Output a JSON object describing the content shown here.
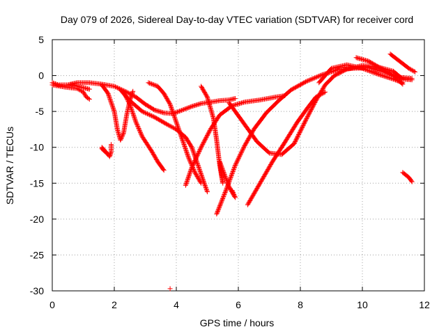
{
  "chart_data": {
    "type": "scatter",
    "title": "Day 079 of 2026, Sidereal Day-to-day VTEC variation (SDTVAR) for receiver cord",
    "xlabel": "GPS time / hours",
    "ylabel": "SDTVAR / TECUs",
    "xlim": [
      0,
      12
    ],
    "ylim": [
      -30,
      5
    ],
    "xticks": [
      0,
      2,
      4,
      6,
      8,
      10,
      12
    ],
    "yticks": [
      5,
      0,
      -5,
      -10,
      -15,
      -20,
      -25,
      -30
    ],
    "grid": true,
    "marker": "+",
    "color": "#ff0000",
    "series": [
      {
        "name": "arc-1",
        "points": [
          [
            0.0,
            -1.0
          ],
          [
            0.2,
            -1.3
          ],
          [
            0.5,
            -1.3
          ],
          [
            0.8,
            -1.0
          ],
          [
            1.2,
            -1.0
          ],
          [
            1.6,
            -1.2
          ],
          [
            2.0,
            -1.5
          ],
          [
            2.4,
            -2.3
          ],
          [
            2.7,
            -3.0
          ],
          [
            3.0,
            -4.0
          ],
          [
            3.3,
            -4.8
          ],
          [
            3.6,
            -5.2
          ],
          [
            3.9,
            -5.3
          ],
          [
            4.2,
            -4.8
          ],
          [
            4.5,
            -4.3
          ],
          [
            4.8,
            -3.9
          ],
          [
            5.1,
            -3.7
          ],
          [
            5.4,
            -3.5
          ],
          [
            5.7,
            -3.4
          ],
          [
            5.9,
            -3.2
          ]
        ]
      },
      {
        "name": "arc-2",
        "points": [
          [
            0.0,
            -1.3
          ],
          [
            0.4,
            -1.6
          ],
          [
            0.8,
            -1.8
          ],
          [
            1.0,
            -2.3
          ],
          [
            1.1,
            -3.0
          ],
          [
            1.2,
            -3.3
          ]
        ]
      },
      {
        "name": "arc-3",
        "points": [
          [
            0.6,
            -1.2
          ],
          [
            0.9,
            -1.6
          ],
          [
            1.2,
            -1.9
          ]
        ]
      },
      {
        "name": "arc-4",
        "points": [
          [
            1.6,
            -1.3
          ],
          [
            1.8,
            -2.5
          ],
          [
            2.0,
            -5.0
          ],
          [
            2.1,
            -7.5
          ],
          [
            2.2,
            -9.0
          ],
          [
            2.3,
            -8.0
          ],
          [
            2.4,
            -5.5
          ],
          [
            2.5,
            -3.5
          ],
          [
            2.6,
            -2.2
          ]
        ]
      },
      {
        "name": "arc-5",
        "points": [
          [
            2.3,
            -2.3
          ],
          [
            2.5,
            -4.0
          ],
          [
            2.7,
            -6.5
          ],
          [
            2.9,
            -8.5
          ],
          [
            3.2,
            -10.5
          ],
          [
            3.4,
            -12.0
          ],
          [
            3.6,
            -13.2
          ]
        ]
      },
      {
        "name": "arc-6",
        "points": [
          [
            2.2,
            -2.0
          ],
          [
            2.5,
            -3.5
          ],
          [
            2.9,
            -5.0
          ],
          [
            3.3,
            -5.8
          ],
          [
            3.7,
            -6.8
          ],
          [
            4.0,
            -7.5
          ],
          [
            4.3,
            -8.6
          ],
          [
            4.5,
            -10.0
          ],
          [
            4.7,
            -12.5
          ],
          [
            4.9,
            -15.0
          ],
          [
            5.0,
            -16.2
          ]
        ]
      },
      {
        "name": "arc-7",
        "points": [
          [
            3.1,
            -1.0
          ],
          [
            3.4,
            -1.5
          ],
          [
            3.6,
            -2.5
          ],
          [
            3.8,
            -4.0
          ],
          [
            4.0,
            -6.5
          ],
          [
            4.2,
            -9.0
          ],
          [
            4.4,
            -11.5
          ],
          [
            4.6,
            -13.5
          ],
          [
            4.8,
            -15.0
          ]
        ]
      },
      {
        "name": "arc-8",
        "points": [
          [
            4.3,
            -15.3
          ],
          [
            4.5,
            -12.8
          ],
          [
            4.8,
            -10.0
          ],
          [
            5.1,
            -7.5
          ],
          [
            5.4,
            -5.5
          ],
          [
            5.8,
            -4.2
          ],
          [
            6.2,
            -3.7
          ],
          [
            6.7,
            -3.4
          ],
          [
            7.2,
            -3.0
          ],
          [
            7.5,
            -2.8
          ]
        ]
      },
      {
        "name": "arc-9",
        "points": [
          [
            4.8,
            -1.5
          ],
          [
            5.0,
            -3.0
          ],
          [
            5.2,
            -6.0
          ],
          [
            5.3,
            -9.0
          ],
          [
            5.4,
            -12.5
          ],
          [
            5.5,
            -15.0
          ],
          [
            5.4,
            -12.0
          ],
          [
            5.7,
            -15.5
          ],
          [
            5.9,
            -17.0
          ],
          [
            5.8,
            -16.0
          ]
        ]
      },
      {
        "name": "arc-10",
        "points": [
          [
            5.3,
            -19.3
          ],
          [
            5.6,
            -16.0
          ],
          [
            5.9,
            -12.5
          ],
          [
            6.2,
            -9.8
          ],
          [
            6.5,
            -7.5
          ],
          [
            6.9,
            -5.2
          ],
          [
            7.3,
            -3.5
          ],
          [
            7.7,
            -2.0
          ],
          [
            8.2,
            -0.8
          ],
          [
            8.7,
            0.1
          ],
          [
            9.2,
            0.8
          ],
          [
            9.7,
            1.0
          ],
          [
            10.2,
            1.1
          ],
          [
            10.7,
            0.5
          ],
          [
            11.1,
            -0.2
          ],
          [
            11.6,
            -0.4
          ]
        ]
      },
      {
        "name": "arc-11",
        "points": [
          [
            5.7,
            -3.8
          ],
          [
            6.2,
            -6.8
          ],
          [
            6.6,
            -9.2
          ],
          [
            7.0,
            -10.8
          ],
          [
            7.4,
            -11.0
          ],
          [
            7.8,
            -9.5
          ],
          [
            8.2,
            -6.0
          ],
          [
            8.5,
            -3.5
          ],
          [
            8.8,
            -1.3
          ],
          [
            9.1,
            0.0
          ],
          [
            9.5,
            0.9
          ],
          [
            10.0,
            1.4
          ],
          [
            10.5,
            1.2
          ],
          [
            11.0,
            0.6
          ],
          [
            11.3,
            -0.5
          ],
          [
            11.6,
            -0.6
          ]
        ]
      },
      {
        "name": "arc-12",
        "points": [
          [
            6.3,
            -18.0
          ],
          [
            6.7,
            -15.0
          ],
          [
            7.1,
            -12.0
          ],
          [
            7.5,
            -9.3
          ],
          [
            7.9,
            -6.5
          ],
          [
            8.2,
            -4.7
          ],
          [
            8.5,
            -3.0
          ],
          [
            8.8,
            -2.3
          ]
        ]
      },
      {
        "name": "arc-13",
        "points": [
          [
            8.6,
            -1.0
          ],
          [
            9.0,
            1.0
          ],
          [
            9.5,
            1.5
          ],
          [
            10.0,
            1.0
          ],
          [
            10.5,
            0.2
          ],
          [
            11.0,
            -0.5
          ],
          [
            11.3,
            -1.0
          ]
        ]
      },
      {
        "name": "arc-14",
        "points": [
          [
            9.8,
            2.5
          ],
          [
            10.2,
            2.0
          ],
          [
            10.6,
            1.0
          ],
          [
            11.0,
            0.0
          ],
          [
            11.3,
            -1.2
          ]
        ]
      },
      {
        "name": "arc-15",
        "points": [
          [
            10.9,
            3.0
          ],
          [
            11.2,
            2.0
          ],
          [
            11.5,
            1.0
          ],
          [
            11.7,
            0.5
          ]
        ]
      },
      {
        "name": "arc-16",
        "points": [
          [
            11.3,
            -13.5
          ],
          [
            11.5,
            -14.2
          ],
          [
            11.6,
            -14.8
          ]
        ]
      },
      {
        "name": "arc-17",
        "points": [
          [
            1.6,
            -10.2
          ],
          [
            1.7,
            -10.6
          ],
          [
            1.8,
            -11.0
          ],
          [
            1.85,
            -11.3
          ],
          [
            1.9,
            -10.6
          ],
          [
            1.9,
            -9.6
          ]
        ]
      },
      {
        "name": "arc-18",
        "points": [
          [
            1.6,
            -10.0
          ],
          [
            1.8,
            -11.0
          ]
        ]
      },
      {
        "name": "outlier",
        "points": [
          [
            3.8,
            -29.7
          ]
        ]
      }
    ]
  }
}
